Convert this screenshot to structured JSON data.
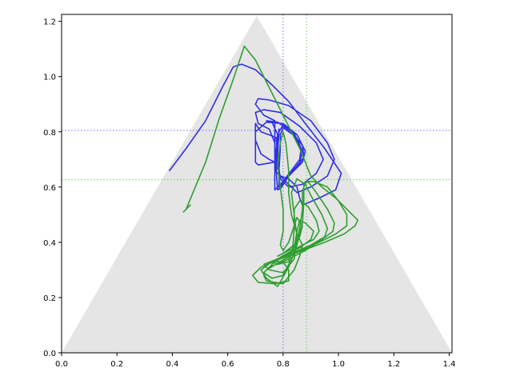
{
  "chart_data": {
    "type": "line",
    "title": "",
    "xlabel": "",
    "ylabel": "",
    "xlim": [
      0.0,
      1.41
    ],
    "ylim": [
      0.0,
      1.225
    ],
    "x_ticks": [
      "0.0",
      "0.2",
      "0.4",
      "0.6",
      "0.8",
      "1.0",
      "1.2",
      "1.4"
    ],
    "y_ticks": [
      "0.0",
      "0.2",
      "0.4",
      "0.6",
      "0.8",
      "1.0",
      "1.2"
    ],
    "grid": false,
    "legend": "none",
    "background_region": {
      "type": "triangle",
      "color": "#e5e5e5",
      "vertices": [
        [
          0.0,
          0.0
        ],
        [
          1.41,
          0.0
        ],
        [
          0.705,
          1.22
        ]
      ]
    },
    "reference_lines": [
      {
        "orientation": "vertical",
        "value": 0.8,
        "color": "#8888ff",
        "style": "dotted"
      },
      {
        "orientation": "horizontal",
        "value": 0.805,
        "color": "#8888ff",
        "style": "dotted"
      },
      {
        "orientation": "vertical",
        "value": 0.885,
        "color": "#88cc88",
        "style": "dotted"
      },
      {
        "orientation": "horizontal",
        "value": 0.627,
        "color": "#88cc88",
        "style": "dotted"
      }
    ],
    "series": [
      {
        "color": "#2f2fe6",
        "points": [
          [
            0.39,
            0.66
          ],
          [
            0.45,
            0.74
          ],
          [
            0.52,
            0.84
          ],
          [
            0.58,
            0.96
          ],
          [
            0.62,
            1.035
          ],
          [
            0.65,
            1.045
          ],
          [
            0.7,
            1.025
          ],
          [
            0.76,
            0.97
          ],
          [
            0.82,
            0.91
          ],
          [
            0.88,
            0.83
          ],
          [
            0.95,
            0.74
          ],
          [
            1.01,
            0.65
          ],
          [
            0.99,
            0.59
          ],
          [
            0.93,
            0.56
          ],
          [
            0.87,
            0.535
          ],
          [
            0.86,
            0.56
          ],
          [
            0.85,
            0.6
          ],
          [
            0.82,
            0.63
          ],
          [
            0.79,
            0.64
          ],
          [
            0.77,
            0.66
          ],
          [
            0.77,
            0.73
          ],
          [
            0.77,
            0.8
          ],
          [
            0.77,
            0.84
          ],
          [
            0.73,
            0.86
          ],
          [
            0.7,
            0.9
          ],
          [
            0.71,
            0.92
          ],
          [
            0.75,
            0.915
          ],
          [
            0.82,
            0.895
          ],
          [
            0.9,
            0.84
          ],
          [
            0.96,
            0.76
          ],
          [
            0.985,
            0.7
          ],
          [
            0.96,
            0.64
          ],
          [
            0.9,
            0.6
          ],
          [
            0.85,
            0.58
          ],
          [
            0.82,
            0.61
          ],
          [
            0.79,
            0.64
          ],
          [
            0.775,
            0.68
          ],
          [
            0.77,
            0.76
          ],
          [
            0.75,
            0.81
          ],
          [
            0.71,
            0.83
          ],
          [
            0.7,
            0.87
          ],
          [
            0.73,
            0.88
          ],
          [
            0.79,
            0.87
          ],
          [
            0.86,
            0.82
          ],
          [
            0.92,
            0.76
          ],
          [
            0.945,
            0.7
          ],
          [
            0.92,
            0.65
          ],
          [
            0.87,
            0.61
          ],
          [
            0.82,
            0.6
          ],
          [
            0.79,
            0.63
          ],
          [
            0.78,
            0.7
          ],
          [
            0.775,
            0.78
          ],
          [
            0.72,
            0.8
          ],
          [
            0.7,
            0.83
          ],
          [
            0.7,
            0.77
          ],
          [
            0.72,
            0.72
          ],
          [
            0.75,
            0.7
          ],
          [
            0.77,
            0.69
          ],
          [
            0.71,
            0.68
          ],
          [
            0.7,
            0.69
          ],
          [
            0.7,
            0.8
          ],
          [
            0.74,
            0.835
          ],
          [
            0.8,
            0.83
          ],
          [
            0.85,
            0.79
          ],
          [
            0.88,
            0.73
          ],
          [
            0.87,
            0.69
          ],
          [
            0.83,
            0.65
          ],
          [
            0.79,
            0.61
          ],
          [
            0.77,
            0.59
          ],
          [
            0.77,
            0.65
          ],
          [
            0.775,
            0.72
          ],
          [
            0.78,
            0.79
          ],
          [
            0.76,
            0.835
          ],
          [
            0.74,
            0.84
          ],
          [
            0.78,
            0.835
          ],
          [
            0.83,
            0.8
          ],
          [
            0.87,
            0.75
          ],
          [
            0.875,
            0.71
          ],
          [
            0.85,
            0.67
          ],
          [
            0.81,
            0.63
          ],
          [
            0.785,
            0.6
          ],
          [
            0.785,
            0.66
          ],
          [
            0.79,
            0.74
          ],
          [
            0.79,
            0.79
          ],
          [
            0.8,
            0.815
          ],
          [
            0.835,
            0.79
          ],
          [
            0.865,
            0.74
          ],
          [
            0.86,
            0.7
          ],
          [
            0.83,
            0.66
          ],
          [
            0.8,
            0.62
          ],
          [
            0.79,
            0.59
          ],
          [
            0.785,
            0.64
          ],
          [
            0.78,
            0.72
          ],
          [
            0.785,
            0.8
          ],
          [
            0.8,
            0.825
          ],
          [
            0.84,
            0.795
          ],
          [
            0.87,
            0.73
          ],
          [
            0.86,
            0.69
          ],
          [
            0.82,
            0.64
          ],
          [
            0.795,
            0.6
          ],
          [
            0.78,
            0.59
          ],
          [
            0.775,
            0.66
          ],
          [
            0.78,
            0.74
          ],
          [
            0.785,
            0.81
          ]
        ]
      },
      {
        "color": "#2f9e2f",
        "points": [
          [
            0.44,
            0.51
          ],
          [
            0.465,
            0.535
          ],
          [
            0.45,
            0.52
          ],
          [
            0.52,
            0.69
          ],
          [
            0.57,
            0.85
          ],
          [
            0.62,
            0.99
          ],
          [
            0.66,
            1.11
          ],
          [
            0.7,
            1.06
          ],
          [
            0.74,
            0.98
          ],
          [
            0.79,
            0.88
          ],
          [
            0.83,
            0.8
          ],
          [
            0.86,
            0.74
          ],
          [
            0.88,
            0.69
          ],
          [
            0.9,
            0.64
          ],
          [
            0.94,
            0.6
          ],
          [
            0.99,
            0.56
          ],
          [
            1.03,
            0.52
          ],
          [
            1.07,
            0.48
          ],
          [
            1.06,
            0.46
          ],
          [
            1.02,
            0.43
          ],
          [
            0.95,
            0.4
          ],
          [
            0.87,
            0.37
          ],
          [
            0.79,
            0.34
          ],
          [
            0.72,
            0.31
          ],
          [
            0.69,
            0.28
          ],
          [
            0.71,
            0.255
          ],
          [
            0.77,
            0.25
          ],
          [
            0.82,
            0.26
          ],
          [
            0.82,
            0.3
          ],
          [
            0.8,
            0.33
          ],
          [
            0.77,
            0.33
          ],
          [
            0.75,
            0.31
          ],
          [
            0.74,
            0.3
          ],
          [
            0.79,
            0.33
          ],
          [
            0.86,
            0.37
          ],
          [
            0.93,
            0.4
          ],
          [
            0.99,
            0.43
          ],
          [
            1.03,
            0.46
          ],
          [
            1.03,
            0.5
          ],
          [
            1.0,
            0.55
          ],
          [
            0.96,
            0.6
          ],
          [
            0.91,
            0.62
          ],
          [
            0.88,
            0.62
          ],
          [
            0.87,
            0.58
          ],
          [
            0.87,
            0.52
          ],
          [
            0.86,
            0.45
          ],
          [
            0.84,
            0.36
          ],
          [
            0.8,
            0.28
          ],
          [
            0.76,
            0.27
          ],
          [
            0.73,
            0.29
          ],
          [
            0.75,
            0.31
          ],
          [
            0.8,
            0.33
          ],
          [
            0.88,
            0.37
          ],
          [
            0.94,
            0.41
          ],
          [
            0.98,
            0.44
          ],
          [
            0.985,
            0.47
          ],
          [
            0.96,
            0.52
          ],
          [
            0.92,
            0.58
          ],
          [
            0.89,
            0.62
          ],
          [
            0.875,
            0.61
          ],
          [
            0.875,
            0.55
          ],
          [
            0.87,
            0.47
          ],
          [
            0.85,
            0.39
          ],
          [
            0.82,
            0.31
          ],
          [
            0.78,
            0.24
          ],
          [
            0.74,
            0.27
          ],
          [
            0.72,
            0.3
          ],
          [
            0.76,
            0.33
          ],
          [
            0.83,
            0.36
          ],
          [
            0.9,
            0.39
          ],
          [
            0.95,
            0.42
          ],
          [
            0.96,
            0.45
          ],
          [
            0.94,
            0.5
          ],
          [
            0.9,
            0.57
          ],
          [
            0.88,
            0.61
          ],
          [
            0.85,
            0.63
          ],
          [
            0.83,
            0.58
          ],
          [
            0.84,
            0.5
          ],
          [
            0.85,
            0.42
          ],
          [
            0.84,
            0.34
          ],
          [
            0.8,
            0.29
          ],
          [
            0.75,
            0.3
          ],
          [
            0.73,
            0.32
          ],
          [
            0.78,
            0.34
          ],
          [
            0.85,
            0.38
          ],
          [
            0.91,
            0.41
          ],
          [
            0.93,
            0.44
          ],
          [
            0.92,
            0.48
          ],
          [
            0.89,
            0.53
          ],
          [
            0.86,
            0.55
          ],
          [
            0.84,
            0.52
          ],
          [
            0.84,
            0.45
          ],
          [
            0.835,
            0.38
          ],
          [
            0.82,
            0.33
          ],
          [
            0.78,
            0.32
          ],
          [
            0.76,
            0.33
          ],
          [
            0.8,
            0.35
          ],
          [
            0.86,
            0.38
          ],
          [
            0.9,
            0.41
          ],
          [
            0.91,
            0.44
          ],
          [
            0.88,
            0.47
          ],
          [
            0.86,
            0.48
          ],
          [
            0.85,
            0.44
          ],
          [
            0.84,
            0.38
          ],
          [
            0.8,
            0.36
          ],
          [
            0.78,
            0.35
          ],
          [
            0.8,
            0.36
          ],
          [
            0.84,
            0.39
          ],
          [
            0.86,
            0.42
          ],
          [
            0.87,
            0.46
          ],
          [
            0.85,
            0.49
          ],
          [
            0.84,
            0.46
          ],
          [
            0.82,
            0.4
          ],
          [
            0.8,
            0.37
          ],
          [
            0.79,
            0.39
          ],
          [
            0.8,
            0.44
          ],
          [
            0.8,
            0.52
          ],
          [
            0.79,
            0.6
          ],
          [
            0.78,
            0.68
          ],
          [
            0.79,
            0.76
          ],
          [
            0.8,
            0.8
          ],
          [
            0.81,
            0.76
          ],
          [
            0.82,
            0.66
          ],
          [
            0.82,
            0.58
          ],
          [
            0.83,
            0.5
          ],
          [
            0.85,
            0.43
          ],
          [
            0.87,
            0.39
          ],
          [
            0.86,
            0.35
          ],
          [
            0.84,
            0.3
          ],
          [
            0.8,
            0.25
          ],
          [
            0.74,
            0.26
          ],
          [
            0.73,
            0.28
          ]
        ]
      }
    ]
  }
}
